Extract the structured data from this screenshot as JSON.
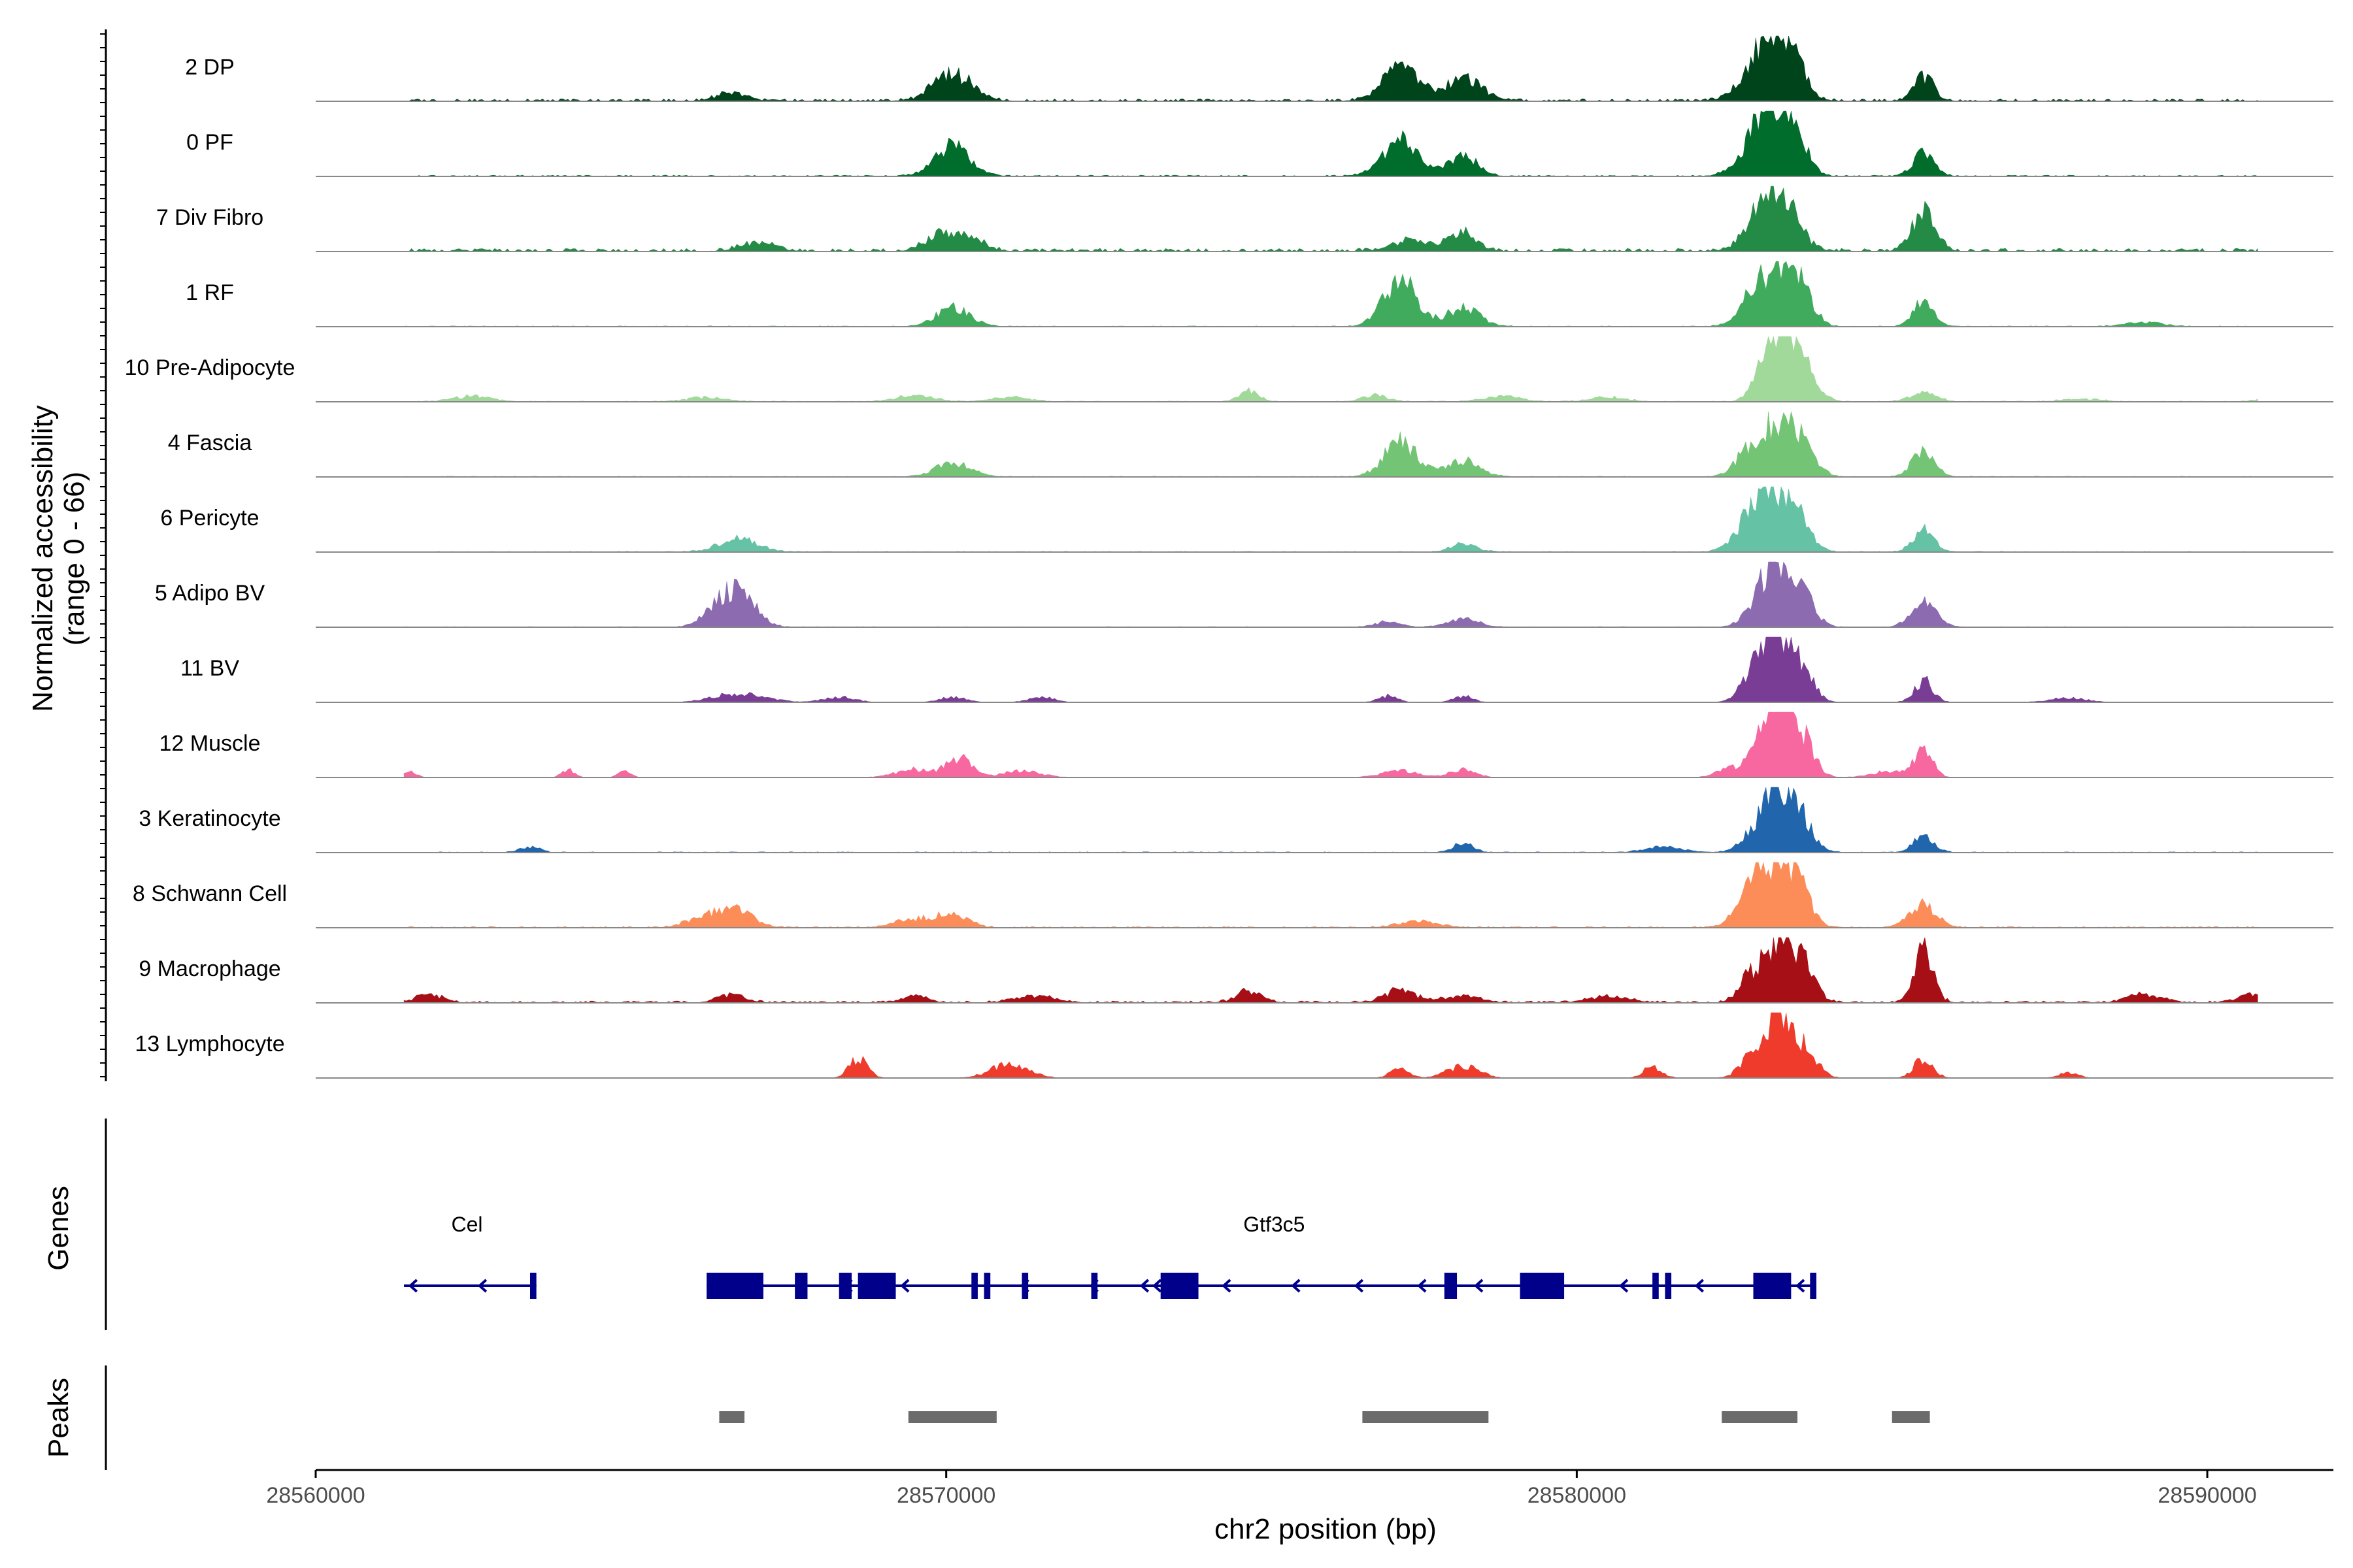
{
  "chart_data": {
    "type": "coverage",
    "ylabel_line1": "Normalized accessibility",
    "ylabel_line2": "(range 0 - 66)",
    "xlabel": "chr2 position (bp)",
    "xlim": [
      28560000,
      28592000
    ],
    "xticks": [
      28560000,
      28570000,
      28580000,
      28590000
    ],
    "xtick_labels": [
      "28560000",
      "28570000",
      "28580000",
      "28590000"
    ],
    "y_range": [
      0,
      66
    ],
    "tracks": [
      {
        "name": "2 DP",
        "color": "#00441b",
        "baseline": 0.15,
        "peaks": [
          [
            28566600,
            0.15,
            220
          ],
          [
            28570100,
            0.5,
            300
          ],
          [
            28577200,
            0.6,
            280
          ],
          [
            28578200,
            0.4,
            300
          ],
          [
            28582800,
            0.55,
            260
          ],
          [
            28583100,
            1.0,
            200
          ],
          [
            28583450,
            0.75,
            200
          ],
          [
            28585500,
            0.45,
            160
          ]
        ]
      },
      {
        "name": "0 PF",
        "color": "#006d2c",
        "baseline": 0.08,
        "peaks": [
          [
            28570100,
            0.55,
            280
          ],
          [
            28577200,
            0.65,
            280
          ],
          [
            28578200,
            0.4,
            220
          ],
          [
            28582800,
            0.55,
            260
          ],
          [
            28583100,
            1.0,
            200
          ],
          [
            28583450,
            0.75,
            200
          ],
          [
            28585500,
            0.45,
            160
          ]
        ]
      },
      {
        "name": "7 Div Fibro",
        "color": "#238b45",
        "baseline": 0.2,
        "peaks": [
          [
            28567000,
            0.15,
            260
          ],
          [
            28569900,
            0.3,
            220
          ],
          [
            28570400,
            0.22,
            220
          ],
          [
            28577400,
            0.2,
            300
          ],
          [
            28578200,
            0.35,
            200
          ],
          [
            28583000,
            1.0,
            260
          ],
          [
            28583400,
            0.5,
            220
          ],
          [
            28585500,
            0.75,
            180
          ]
        ]
      },
      {
        "name": "1 RF",
        "color": "#41ab5d",
        "baseline": 0.05,
        "peaks": [
          [
            28570100,
            0.35,
            260
          ],
          [
            28577200,
            0.9,
            260
          ],
          [
            28578200,
            0.35,
            260
          ],
          [
            28582800,
            0.55,
            240
          ],
          [
            28583200,
            1.0,
            200
          ],
          [
            28583550,
            0.65,
            200
          ],
          [
            28585500,
            0.45,
            160
          ],
          [
            28589000,
            0.08,
            300
          ]
        ]
      },
      {
        "name": "10 Pre-Adipocyte",
        "color": "#a1d99b",
        "baseline": 0.05,
        "peaks": [
          [
            28562500,
            0.1,
            300
          ],
          [
            28566200,
            0.08,
            300
          ],
          [
            28569500,
            0.12,
            300
          ],
          [
            28571000,
            0.08,
            300
          ],
          [
            28574800,
            0.2,
            150
          ],
          [
            28576800,
            0.12,
            200
          ],
          [
            28578800,
            0.1,
            300
          ],
          [
            28580500,
            0.08,
            300
          ],
          [
            28583000,
            0.85,
            180
          ],
          [
            28583300,
            1.0,
            160
          ],
          [
            28583600,
            0.7,
            200
          ],
          [
            28585500,
            0.18,
            200
          ],
          [
            28588000,
            0.05,
            300
          ],
          [
            28591000,
            0.08,
            200
          ]
        ]
      },
      {
        "name": "4 Fascia",
        "color": "#74c476",
        "baseline": 0.05,
        "peaks": [
          [
            28570100,
            0.25,
            280
          ],
          [
            28577200,
            0.65,
            260
          ],
          [
            28578200,
            0.3,
            260
          ],
          [
            28582800,
            0.55,
            240
          ],
          [
            28583200,
            0.75,
            220
          ],
          [
            28583550,
            0.6,
            220
          ],
          [
            28585500,
            0.45,
            180
          ]
        ]
      },
      {
        "name": "6 Pericyte",
        "color": "#66c2a4",
        "baseline": 0.05,
        "peaks": [
          [
            28566700,
            0.25,
            300
          ],
          [
            28578200,
            0.15,
            200
          ],
          [
            28582800,
            0.6,
            260
          ],
          [
            28583100,
            0.9,
            240
          ],
          [
            28583500,
            0.55,
            220
          ],
          [
            28585500,
            0.4,
            160
          ]
        ]
      },
      {
        "name": "5 Adipo BV",
        "color": "#8c6bb1",
        "baseline": 0.04,
        "peaks": [
          [
            28566300,
            0.25,
            200
          ],
          [
            28566700,
            0.65,
            260
          ],
          [
            28577000,
            0.1,
            200
          ],
          [
            28578200,
            0.15,
            250
          ],
          [
            28582900,
            0.45,
            220
          ],
          [
            28583200,
            1.0,
            200
          ],
          [
            28583550,
            0.7,
            200
          ],
          [
            28585500,
            0.45,
            200
          ]
        ]
      },
      {
        "name": "11 BV",
        "color": "#7a3d96",
        "baseline": 0.0,
        "peaks": [
          [
            28566500,
            0.12,
            300
          ],
          [
            28567000,
            0.1,
            300
          ],
          [
            28568300,
            0.1,
            250
          ],
          [
            28570100,
            0.1,
            200
          ],
          [
            28571500,
            0.1,
            200
          ],
          [
            28577000,
            0.12,
            150
          ],
          [
            28578200,
            0.12,
            150
          ],
          [
            28582900,
            0.8,
            220
          ],
          [
            28583200,
            1.0,
            200
          ],
          [
            28583550,
            0.6,
            200
          ],
          [
            28585500,
            0.4,
            150
          ],
          [
            28587800,
            0.08,
            300
          ]
        ]
      },
      {
        "name": "12 Muscle",
        "color": "#f768a1",
        "baseline": 0.0,
        "peaks": [
          [
            28561500,
            0.1,
            100
          ],
          [
            28564000,
            0.15,
            100
          ],
          [
            28564900,
            0.12,
            100
          ],
          [
            28569500,
            0.15,
            300
          ],
          [
            28570200,
            0.35,
            200
          ],
          [
            28571200,
            0.12,
            300
          ],
          [
            28577200,
            0.12,
            300
          ],
          [
            28578200,
            0.15,
            200
          ],
          [
            28582400,
            0.15,
            200
          ],
          [
            28583000,
            0.7,
            220
          ],
          [
            28583200,
            1.0,
            180
          ],
          [
            28583550,
            0.75,
            200
          ],
          [
            28585000,
            0.12,
            300
          ],
          [
            28585500,
            0.45,
            150
          ]
        ]
      },
      {
        "name": "3 Keratinocyte",
        "color": "#2166ac",
        "baseline": 0.05,
        "peaks": [
          [
            28563400,
            0.1,
            150
          ],
          [
            28578200,
            0.2,
            150
          ],
          [
            28581400,
            0.1,
            300
          ],
          [
            28582900,
            0.4,
            250
          ],
          [
            28583200,
            0.95,
            200
          ],
          [
            28583550,
            0.6,
            200
          ],
          [
            28585500,
            0.3,
            160
          ]
        ]
      },
      {
        "name": "8 Schwann Cell",
        "color": "#fc8d59",
        "baseline": 0.08,
        "peaks": [
          [
            28566200,
            0.2,
            300
          ],
          [
            28566700,
            0.28,
            250
          ],
          [
            28569500,
            0.15,
            300
          ],
          [
            28570100,
            0.22,
            250
          ],
          [
            28577500,
            0.12,
            300
          ],
          [
            28582800,
            0.55,
            250
          ],
          [
            28583100,
            0.75,
            250
          ],
          [
            28583500,
            1.0,
            180
          ],
          [
            28585500,
            0.45,
            200
          ]
        ]
      },
      {
        "name": "9 Macrophage",
        "color": "#a50f15",
        "baseline": 0.12,
        "peaks": [
          [
            28561800,
            0.15,
            200
          ],
          [
            28566600,
            0.15,
            200
          ],
          [
            28569500,
            0.12,
            200
          ],
          [
            28571400,
            0.12,
            300
          ],
          [
            28574800,
            0.2,
            200
          ],
          [
            28577200,
            0.22,
            250
          ],
          [
            28578200,
            0.15,
            250
          ],
          [
            28580500,
            0.12,
            300
          ],
          [
            28582800,
            0.55,
            200
          ],
          [
            28583200,
            1.0,
            180
          ],
          [
            28583550,
            0.75,
            200
          ],
          [
            28585500,
            1.0,
            150
          ],
          [
            28589000,
            0.15,
            250
          ],
          [
            28590700,
            0.15,
            200
          ]
        ]
      },
      {
        "name": "13 Lymphocyte",
        "color": "#ef3b2c",
        "baseline": 0.0,
        "peaks": [
          [
            28568600,
            0.35,
            150
          ],
          [
            28571000,
            0.25,
            300
          ],
          [
            28577200,
            0.18,
            150
          ],
          [
            28578200,
            0.22,
            250
          ],
          [
            28581200,
            0.2,
            150
          ],
          [
            28582800,
            0.4,
            200
          ],
          [
            28583200,
            1.0,
            180
          ],
          [
            28583600,
            0.55,
            200
          ],
          [
            28585500,
            0.35,
            150
          ],
          [
            28587800,
            0.1,
            150
          ]
        ]
      }
    ],
    "genes": {
      "title": "Genes",
      "color": "#00008b",
      "items": [
        {
          "name": "Cel",
          "start": 28561400,
          "end": 28563500,
          "exons": [
            [
              28563400,
              28563500
            ]
          ],
          "arrows": [
            28561500,
            28562600
          ]
        },
        {
          "name": "Gtf3c5",
          "start": 28566200,
          "end": 28583800,
          "exons": [
            [
              28566200,
              28567100
            ],
            [
              28567600,
              28567800
            ],
            [
              28568300,
              28568500
            ],
            [
              28568600,
              28569200
            ],
            [
              28570400,
              28570500
            ],
            [
              28570600,
              28570700
            ],
            [
              28571200,
              28571300
            ],
            [
              28572300,
              28572400
            ],
            [
              28573400,
              28574000
            ],
            [
              28577900,
              28578100
            ],
            [
              28579100,
              28579800
            ],
            [
              28581200,
              28581300
            ],
            [
              28581400,
              28581500
            ],
            [
              28582800,
              28583400
            ],
            [
              28583700,
              28583800
            ]
          ],
          "arrows": [
            28566300,
            28568400,
            28569300,
            28571200,
            28572300,
            28573100,
            28573300,
            28574400,
            28575500,
            28576500,
            28577500,
            28578400,
            28580700,
            28581900,
            28583500
          ]
        }
      ]
    },
    "peaks": {
      "title": "Peaks",
      "color": "#6b6b6b",
      "regions": [
        [
          28566400,
          28566800
        ],
        [
          28569400,
          28570800
        ],
        [
          28576600,
          28578600
        ],
        [
          28582300,
          28583500
        ],
        [
          28585000,
          28585600
        ]
      ]
    }
  }
}
